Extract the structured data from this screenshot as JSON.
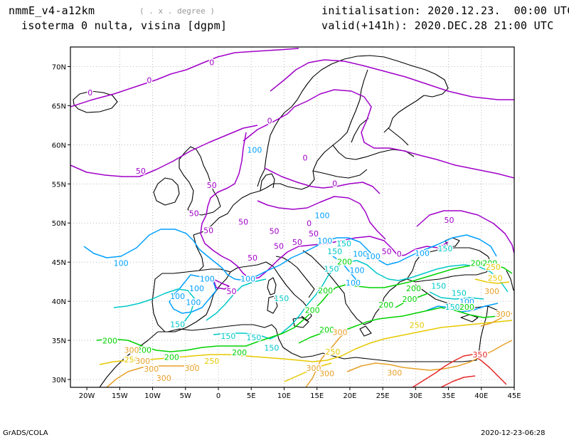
{
  "header": {
    "model": "nmmE_v4-a12km",
    "units": "( . x . degree )",
    "variable": "isoterma 0 nulta, visina [dgpm]",
    "init": "initialisation: 2020.12.23.  00:00 UTC",
    "valid": "valid(+141h): 2020.DEC.28 21:00 UTC"
  },
  "footer": {
    "left": "GrADS/COLA",
    "right": "2020-12-23-06:28"
  },
  "map": {
    "lon_ticks": [
      "20W",
      "15W",
      "10W",
      "5W",
      "0",
      "5E",
      "10E",
      "15E",
      "20E",
      "25E",
      "30E",
      "35E",
      "40E",
      "45E"
    ],
    "lat_ticks": [
      "70N",
      "65N",
      "60N",
      "55N",
      "50N",
      "45N",
      "40N",
      "35N",
      "30N"
    ],
    "contour_colors": {
      "0": "#a000c8",
      "50": "#a000c8",
      "100": "#00a0ff",
      "150": "#00c8c8",
      "200": "#00d200",
      "250": "#e6c800",
      "300": "#e6a028",
      "350": "#e62828"
    },
    "contour_labels": [
      {
        "v": "0",
        "lon": -1,
        "lat": 70.2
      },
      {
        "v": "0",
        "lon": -10.5,
        "lat": 67.9
      },
      {
        "v": "0",
        "lon": -19.5,
        "lat": 66.3
      },
      {
        "v": "0",
        "lon": 7.8,
        "lat": 62.7
      },
      {
        "v": "0",
        "lon": 13.2,
        "lat": 58.0
      },
      {
        "v": "0",
        "lon": 17.7,
        "lat": 54.7
      },
      {
        "v": "0",
        "lon": 13.8,
        "lat": 49.6
      },
      {
        "v": "0",
        "lon": 27.5,
        "lat": 45.7
      },
      {
        "v": "50",
        "lon": -11.8,
        "lat": 56.3
      },
      {
        "v": "50",
        "lon": -1.0,
        "lat": 54.5
      },
      {
        "v": "50",
        "lon": -3.7,
        "lat": 50.9
      },
      {
        "v": "50",
        "lon": -1.5,
        "lat": 48.7
      },
      {
        "v": "50",
        "lon": 3.8,
        "lat": 49.8
      },
      {
        "v": "50",
        "lon": 8.5,
        "lat": 48.6
      },
      {
        "v": "50",
        "lon": 9.2,
        "lat": 46.7
      },
      {
        "v": "50",
        "lon": 5.2,
        "lat": 45.2
      },
      {
        "v": "50",
        "lon": 12.0,
        "lat": 47.2
      },
      {
        "v": "50",
        "lon": 14.5,
        "lat": 48.3
      },
      {
        "v": "50",
        "lon": 2.0,
        "lat": 40.9
      },
      {
        "v": "50",
        "lon": 35.1,
        "lat": 50.0
      },
      {
        "v": "50",
        "lon": 25.6,
        "lat": 46.0
      },
      {
        "v": "100",
        "lon": 5.5,
        "lat": 59.0
      },
      {
        "v": "100",
        "lon": 15.8,
        "lat": 50.6
      },
      {
        "v": "100",
        "lon": 16.2,
        "lat": 47.4
      },
      {
        "v": "100",
        "lon": -14.8,
        "lat": 44.5
      },
      {
        "v": "100",
        "lon": -1.7,
        "lat": 42.5
      },
      {
        "v": "100",
        "lon": -3.3,
        "lat": 41.3
      },
      {
        "v": "100",
        "lon": -6.2,
        "lat": 40.3
      },
      {
        "v": "100",
        "lon": -3.8,
        "lat": 39.5
      },
      {
        "v": "100",
        "lon": 4.5,
        "lat": 42.5
      },
      {
        "v": "100",
        "lon": 21.6,
        "lat": 45.7
      },
      {
        "v": "100",
        "lon": 23.5,
        "lat": 45.4
      },
      {
        "v": "100",
        "lon": 21.1,
        "lat": 43.6
      },
      {
        "v": "100",
        "lon": 20.5,
        "lat": 42.0
      },
      {
        "v": "100",
        "lon": 31.0,
        "lat": 45.8
      },
      {
        "v": "100",
        "lon": 37.8,
        "lat": 39.6
      },
      {
        "v": "150",
        "lon": 17.7,
        "lat": 46.0
      },
      {
        "v": "150",
        "lon": 19.1,
        "lat": 47.0
      },
      {
        "v": "150",
        "lon": 17.2,
        "lat": 43.8
      },
      {
        "v": "150",
        "lon": 9.6,
        "lat": 40.0
      },
      {
        "v": "150",
        "lon": -6.2,
        "lat": 36.7
      },
      {
        "v": "150",
        "lon": 1.5,
        "lat": 35.2
      },
      {
        "v": "150",
        "lon": 5.4,
        "lat": 35.0
      },
      {
        "v": "150",
        "lon": 8.1,
        "lat": 33.7
      },
      {
        "v": "150",
        "lon": 34.5,
        "lat": 46.4
      },
      {
        "v": "150",
        "lon": 33.5,
        "lat": 41.6
      },
      {
        "v": "150",
        "lon": 36.6,
        "lat": 40.7
      },
      {
        "v": "150",
        "lon": 35.6,
        "lat": 38.9
      },
      {
        "v": "200",
        "lon": 19.2,
        "lat": 44.7
      },
      {
        "v": "200",
        "lon": 16.3,
        "lat": 41.0
      },
      {
        "v": "200",
        "lon": 14.3,
        "lat": 38.5
      },
      {
        "v": "200",
        "lon": 16.5,
        "lat": 36.0
      },
      {
        "v": "200",
        "lon": -16.5,
        "lat": 34.6
      },
      {
        "v": "200",
        "lon": -11.3,
        "lat": 33.4
      },
      {
        "v": "200",
        "lon": -7.1,
        "lat": 32.5
      },
      {
        "v": "200",
        "lon": 3.2,
        "lat": 33.1
      },
      {
        "v": "200",
        "lon": 25.5,
        "lat": 39.2
      },
      {
        "v": "200",
        "lon": 29.7,
        "lat": 41.3
      },
      {
        "v": "200",
        "lon": 29.1,
        "lat": 39.9
      },
      {
        "v": "200",
        "lon": 37.8,
        "lat": 38.9
      },
      {
        "v": "200",
        "lon": 39.5,
        "lat": 44.5
      },
      {
        "v": "200",
        "lon": 41.3,
        "lat": 44.5
      },
      {
        "v": "250",
        "lon": 17.4,
        "lat": 33.2
      },
      {
        "v": "250",
        "lon": 30.2,
        "lat": 36.6
      },
      {
        "v": "250",
        "lon": 41.8,
        "lat": 44.0
      },
      {
        "v": "250",
        "lon": 42.1,
        "lat": 42.6
      },
      {
        "v": "250",
        "lon": -1.0,
        "lat": 32.0
      },
      {
        "v": "250",
        "lon": -13.2,
        "lat": 32.2
      },
      {
        "v": "300",
        "lon": -13.2,
        "lat": 33.4
      },
      {
        "v": "300",
        "lon": -11.5,
        "lat": 32.0
      },
      {
        "v": "300",
        "lon": -10.2,
        "lat": 31.0
      },
      {
        "v": "300",
        "lon": -4.0,
        "lat": 31.1
      },
      {
        "v": "300",
        "lon": -8.3,
        "lat": 29.8
      },
      {
        "v": "300",
        "lon": 18.5,
        "lat": 35.7
      },
      {
        "v": "300",
        "lon": 14.5,
        "lat": 31.1
      },
      {
        "v": "300",
        "lon": 16.5,
        "lat": 30.4
      },
      {
        "v": "300",
        "lon": 26.8,
        "lat": 30.5
      },
      {
        "v": "300",
        "lon": 41.6,
        "lat": 40.9
      },
      {
        "v": "300",
        "lon": 43.3,
        "lat": 38.0
      },
      {
        "v": "350",
        "lon": 39.8,
        "lat": 32.8
      }
    ]
  }
}
